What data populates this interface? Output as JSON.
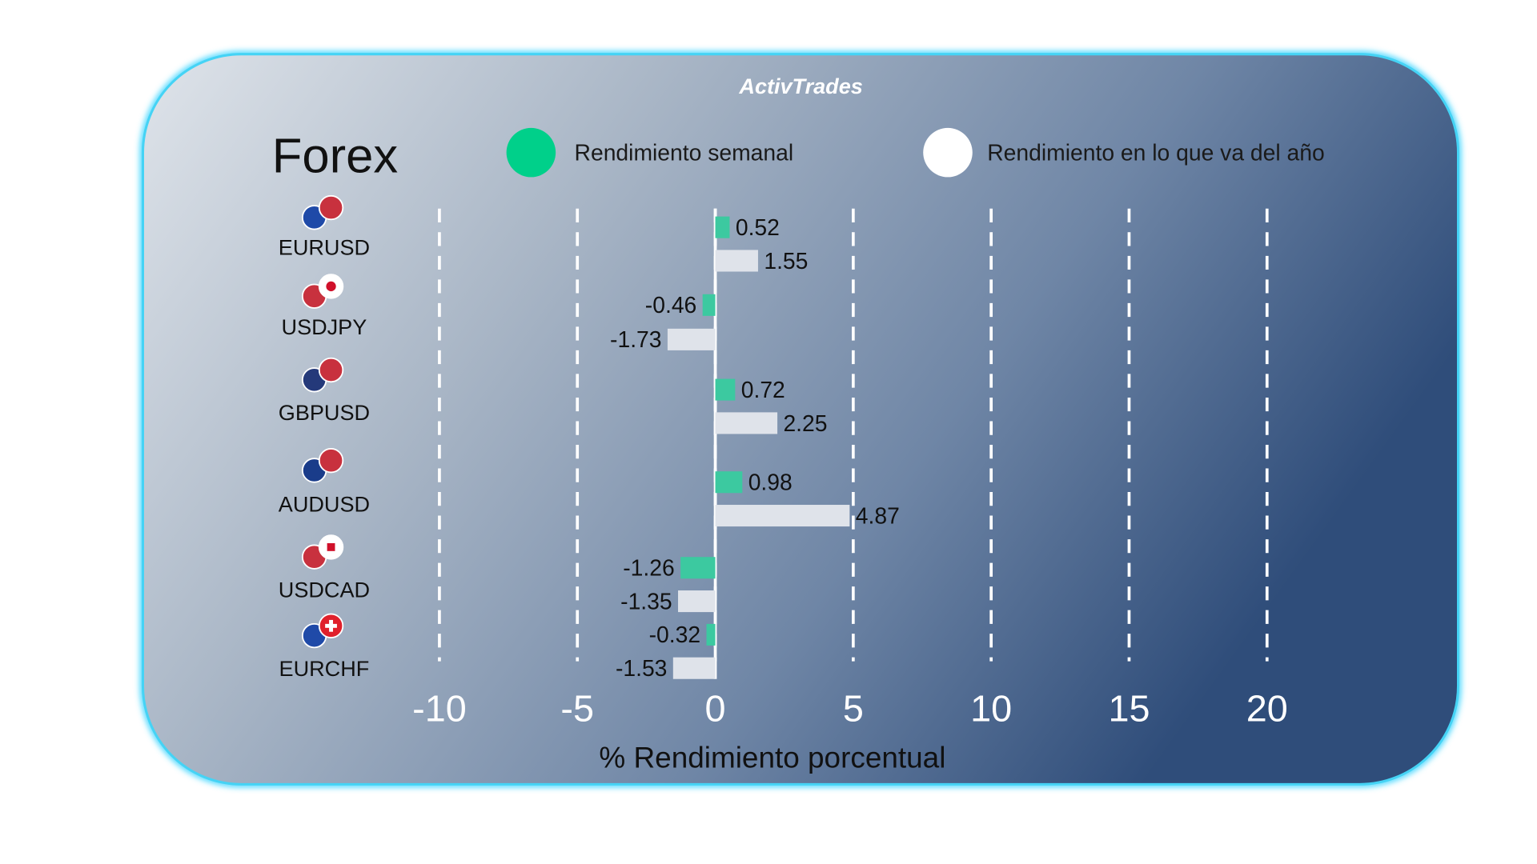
{
  "brand": {
    "logo_text": "ActivTrades"
  },
  "title": "Forex",
  "legend": [
    {
      "label": "Rendimiento semanal",
      "color": "#00d08a"
    },
    {
      "label": "Rendimiento en lo que va del año",
      "color": "#ffffff"
    }
  ],
  "chart_data": {
    "type": "bar",
    "orientation": "horizontal",
    "title": "Forex",
    "xlabel": "% Rendimiento porcentual",
    "xlim": [
      -10,
      20
    ],
    "xticks": [
      -10,
      -5,
      0,
      5,
      10,
      15,
      20
    ],
    "grid": "vertical dashed",
    "legend_position": "top",
    "categories": [
      "EURUSD",
      "USDJPY",
      "GBPUSD",
      "AUDUSD",
      "USDCAD",
      "EURCHF"
    ],
    "flags": [
      "eu-us",
      "us-jp",
      "gb-us",
      "au-us",
      "us-ca",
      "eu-ch"
    ],
    "series": [
      {
        "name": "Rendimiento semanal",
        "color": "#3cc9a0",
        "values": [
          0.52,
          -0.46,
          0.72,
          0.98,
          -1.26,
          -0.32
        ]
      },
      {
        "name": "Rendimiento en lo que va del año",
        "color": "#dfe3ea",
        "values": [
          1.55,
          -1.73,
          2.25,
          4.87,
          -1.35,
          -1.53
        ]
      }
    ]
  }
}
